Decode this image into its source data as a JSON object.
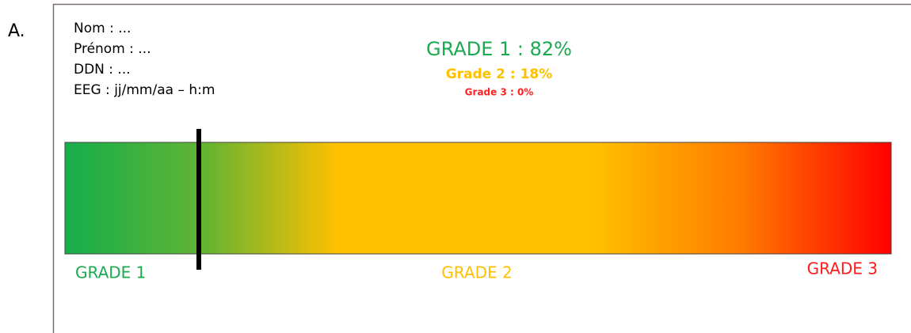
{
  "panel_label": "A.",
  "patient_info": [
    "Nom : ...",
    "Prénom : ...",
    "DDN : ...",
    "EEG : jj/mm/aa – h:m"
  ],
  "results": {
    "grade1": "GRADE 1 : 82%",
    "grade2": "Grade 2 : 18%",
    "grade3": "Grade 3 : 0%"
  },
  "scale_labels": {
    "left": "GRADE 1",
    "middle": "GRADE 2",
    "right": "GRADE 3"
  }
}
